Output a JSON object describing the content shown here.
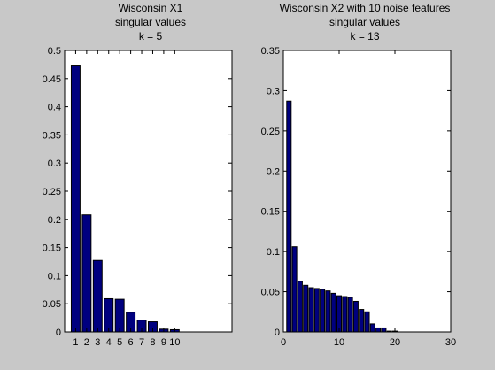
{
  "figure": {
    "background": "#c8c8c8",
    "axes_background": "#ffffff",
    "bar_color": "#00007f",
    "edge_color": "#000000"
  },
  "chart_data": [
    {
      "type": "bar",
      "title_lines": [
        "Wisconsin X1",
        "singular values",
        "k = 5"
      ],
      "xlabel": "",
      "ylabel": "",
      "x": [
        1,
        2,
        3,
        4,
        5,
        6,
        7,
        8,
        9,
        10
      ],
      "values": [
        0.474,
        0.208,
        0.127,
        0.059,
        0.058,
        0.035,
        0.021,
        0.018,
        0.005,
        0.004
      ],
      "xlim": [
        0,
        15.2
      ],
      "ylim": [
        0,
        0.5
      ],
      "xticks": [
        1,
        2,
        3,
        4,
        5,
        6,
        7,
        8,
        9,
        10
      ],
      "xticklabels": [
        "1",
        "2",
        "3",
        "4",
        "5",
        "6",
        "7",
        "8",
        "9",
        "10"
      ],
      "yticks": [
        0,
        0.05,
        0.1,
        0.15,
        0.2,
        0.25,
        0.3,
        0.35,
        0.4,
        0.45,
        0.5
      ],
      "yticklabels": [
        "0",
        "0.05",
        "0.1",
        "0.15",
        "0.2",
        "0.25",
        "0.3",
        "0.35",
        "0.4",
        "0.45",
        "0.5"
      ],
      "bar_width": 0.8,
      "grid": false
    },
    {
      "type": "bar",
      "title_lines": [
        "Wisconsin X2 with 10 noise features",
        "singular values",
        "k = 13"
      ],
      "xlabel": "",
      "ylabel": "",
      "x": [
        1,
        2,
        3,
        4,
        5,
        6,
        7,
        8,
        9,
        10,
        11,
        12,
        13,
        14,
        15,
        16,
        17,
        18,
        19,
        20
      ],
      "values": [
        0.287,
        0.106,
        0.063,
        0.058,
        0.055,
        0.054,
        0.053,
        0.051,
        0.048,
        0.045,
        0.044,
        0.043,
        0.038,
        0.028,
        0.025,
        0.01,
        0.005,
        0.005,
        0.001,
        0.001
      ],
      "xlim": [
        0,
        30
      ],
      "ylim": [
        0,
        0.35
      ],
      "xticks": [
        0,
        10,
        20,
        30
      ],
      "xticklabels": [
        "0",
        "10",
        "20",
        "30"
      ],
      "yticks": [
        0,
        0.05,
        0.1,
        0.15,
        0.2,
        0.25,
        0.3,
        0.35
      ],
      "yticklabels": [
        "0",
        "0.05",
        "0.1",
        "0.15",
        "0.2",
        "0.25",
        "0.3",
        "0.35"
      ],
      "bar_width": 0.8,
      "grid": false
    }
  ]
}
